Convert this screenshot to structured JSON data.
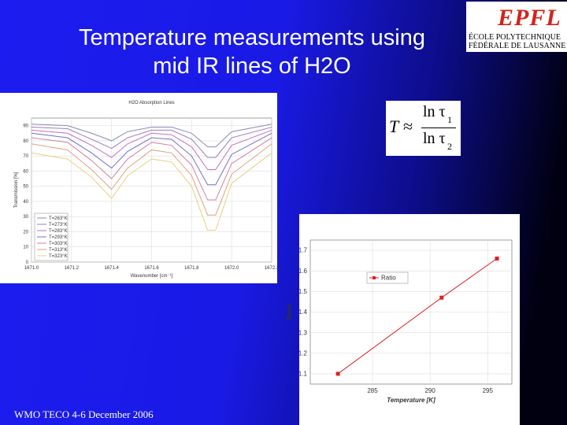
{
  "title": [
    "Temperature measurements using",
    "mid IR lines of  H2O"
  ],
  "logo": {
    "mark": "EPFL",
    "lines": [
      "ÉCOLE  POLYTECHNIQUE",
      "FÉDÉRALE DE LAUSANNE"
    ]
  },
  "formula": {
    "lhs": "T",
    "op": "≈",
    "num": "ln τ",
    "num_sub": "1",
    "den": "ln τ",
    "den_sub": "2"
  },
  "footer": "WMO TECO  4-6 December 2006",
  "chart_data": [
    {
      "type": "line",
      "title": "H2O Absorption Lines",
      "x_label": "Wavenumber [cm⁻¹]",
      "y_label": "Transmission [%]",
      "x": [
        1671.0,
        1671.18,
        1671.3,
        1671.4,
        1671.48,
        1671.6,
        1671.7,
        1671.8,
        1671.88,
        1671.92,
        1672.0,
        1672.2
      ],
      "xlim": [
        1671.0,
        1672.2
      ],
      "xticks": [
        {
          "value": 1671.0,
          "label": "1671.0"
        },
        1671.2,
        1671.4,
        1671.6,
        1671.8,
        {
          "value": 1672.0,
          "label": "1672.0"
        },
        1672.2
      ],
      "ylim": [
        0,
        95
      ],
      "yticks": [
        0,
        10,
        20,
        30,
        40,
        50,
        60,
        70,
        80,
        90
      ],
      "grid": true,
      "legend": "lower-left",
      "markers": false,
      "series": [
        {
          "name": "T=263°K",
          "color": "#8a8ab8",
          "values": [
            91,
            90,
            85,
            80,
            86,
            89,
            89,
            85,
            76,
            76,
            86,
            91
          ]
        },
        {
          "name": "T=273°K",
          "color": "#a07ac0",
          "values": [
            89,
            88,
            81,
            75,
            82,
            87,
            87,
            81,
            69,
            69,
            82,
            89
          ]
        },
        {
          "name": "T=283°K",
          "color": "#c070c0",
          "values": [
            87,
            85,
            77,
            69,
            78,
            85,
            84,
            76,
            61,
            61,
            77,
            87
          ]
        },
        {
          "name": "T=293°K",
          "color": "#7070c8",
          "values": [
            85,
            82,
            72,
            62,
            73,
            82,
            81,
            70,
            51,
            51,
            71,
            85
          ]
        },
        {
          "name": "T=303°K",
          "color": "#d080a0",
          "values": [
            82,
            79,
            67,
            55,
            68,
            79,
            77,
            64,
            41,
            41,
            65,
            82
          ]
        },
        {
          "name": "T=313°K",
          "color": "#e0a080",
          "values": [
            78,
            74,
            61,
            48,
            62,
            74,
            72,
            57,
            31,
            31,
            58,
            78
          ]
        },
        {
          "name": "T=323°K",
          "color": "#e8d080",
          "values": [
            72,
            68,
            56,
            42,
            57,
            68,
            66,
            50,
            21,
            21,
            52,
            72
          ]
        }
      ]
    },
    {
      "type": "line",
      "x_label": "Temperature [K]",
      "y_label": "Ratio",
      "x": [
        282.0,
        291.0,
        295.8
      ],
      "xlim": [
        279.6,
        297.1
      ],
      "xticks": [
        285,
        290,
        295
      ],
      "ylim": [
        1.05,
        1.75
      ],
      "yticks": [
        1.1,
        1.2,
        1.3,
        1.4,
        1.5,
        1.6,
        1.7
      ],
      "grid": true,
      "legend": "upper-left",
      "markers": true,
      "series": [
        {
          "name": "Ratio",
          "color": "#e02020",
          "values": [
            1.1,
            1.47,
            1.66
          ]
        }
      ]
    }
  ]
}
